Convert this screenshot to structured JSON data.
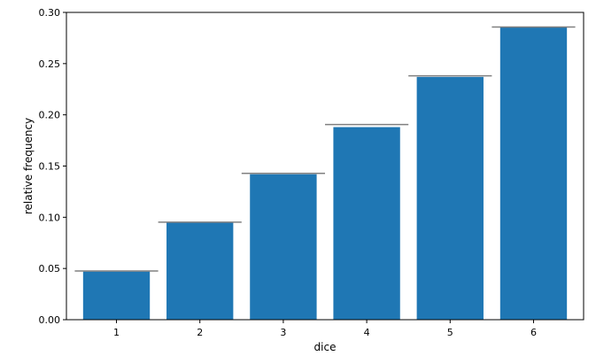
{
  "chart_data": {
    "type": "bar",
    "title": "",
    "xlabel": "dice",
    "ylabel": "relative frequency",
    "categories": [
      "1",
      "2",
      "3",
      "4",
      "5",
      "6"
    ],
    "values": [
      0.047,
      0.095,
      0.142,
      0.188,
      0.237,
      0.286
    ],
    "expected": [
      0.0476,
      0.0952,
      0.1429,
      0.1905,
      0.2381,
      0.2857
    ],
    "ylim": [
      0,
      0.3
    ],
    "yticks": [
      "0.00",
      "0.05",
      "0.10",
      "0.15",
      "0.20",
      "0.25",
      "0.30"
    ],
    "grid": false,
    "legend": "none",
    "colors": {
      "bar": "#1f77b4",
      "expected_line": "#808080"
    }
  }
}
